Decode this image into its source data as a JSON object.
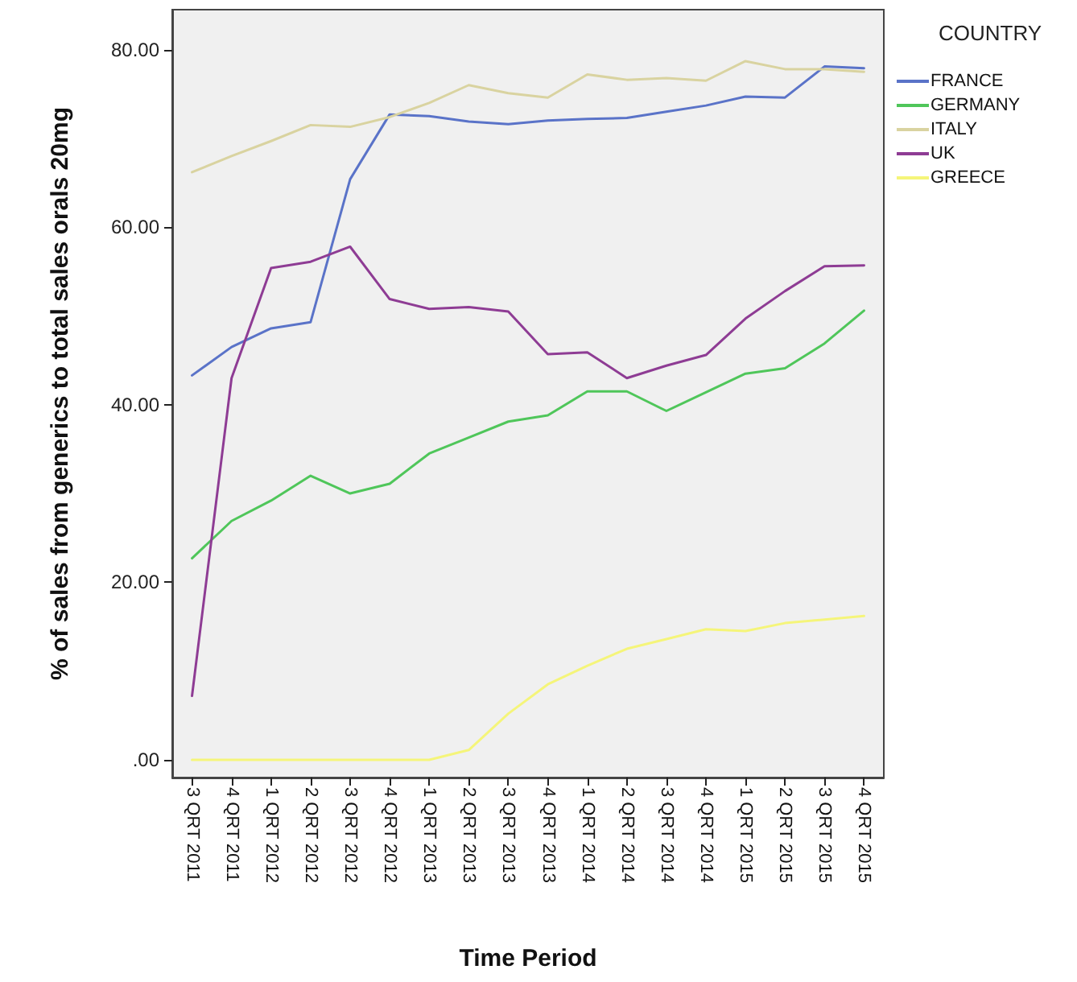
{
  "chart_data": {
    "type": "line",
    "xlabel": "Time Period",
    "ylabel": "% of sales from generics to total sales orals 20mg",
    "legend_title": "COUNTRY",
    "categories": [
      "3 QRT 2011",
      "4 QRT 2011",
      "1 QRT 2012",
      "2 QRT 2012",
      "3 QRT 2012",
      "4 QRT 2012",
      "1 QRT 2013",
      "2 QRT 2013",
      "3 QRT 2013",
      "4 QRT 2013",
      "1 QRT 2014",
      "2 QRT 2014",
      "3 QRT 2014",
      "4 QRT 2014",
      "1 QRT 2015",
      "2 QRT 2015",
      "3 QRT 2015",
      "4 QRT 2015"
    ],
    "series": [
      {
        "name": "FRANCE",
        "color": "#5a73c8",
        "values": [
          43.3,
          46.5,
          48.6,
          49.3,
          65.4,
          72.7,
          72.5,
          71.9,
          71.6,
          72.0,
          72.2,
          72.3,
          73.0,
          73.7,
          74.7,
          74.6,
          78.1,
          77.9
        ]
      },
      {
        "name": "GERMANY",
        "color": "#4fc65a",
        "values": [
          22.7,
          26.9,
          29.2,
          32.0,
          30.0,
          31.1,
          34.5,
          36.3,
          38.1,
          38.8,
          41.5,
          41.5,
          39.3,
          41.4,
          43.5,
          44.1,
          46.9,
          50.6
        ]
      },
      {
        "name": "ITALY",
        "color": "#d9d3a0",
        "values": [
          66.2,
          68.0,
          69.7,
          71.5,
          71.3,
          72.4,
          74.0,
          76.0,
          75.1,
          74.6,
          77.2,
          76.6,
          76.8,
          76.5,
          78.7,
          77.8,
          77.8,
          77.5
        ]
      },
      {
        "name": "UK",
        "color": "#8e3c94",
        "values": [
          7.2,
          43.0,
          55.4,
          56.1,
          57.8,
          51.9,
          50.8,
          51.0,
          50.5,
          45.7,
          45.9,
          43.0,
          44.4,
          45.6,
          49.7,
          52.8,
          55.6,
          55.7
        ]
      },
      {
        "name": "GREECE",
        "color": "#f5f57a",
        "values": [
          0.0,
          0.0,
          0.0,
          0.0,
          0.0,
          0.0,
          0.0,
          1.1,
          5.2,
          8.5,
          10.6,
          12.5,
          13.6,
          14.7,
          14.5,
          15.4,
          15.8,
          16.2
        ]
      }
    ],
    "ylim": [
      -2,
      84.5
    ],
    "yticks": [
      {
        "value": 0,
        "label": ".00"
      },
      {
        "value": 20,
        "label": "20.00"
      },
      {
        "value": 40,
        "label": "40.00"
      },
      {
        "value": 60,
        "label": "60.00"
      },
      {
        "value": 80,
        "label": "80.00"
      }
    ],
    "grid": false,
    "legend": "right",
    "marker": "none",
    "line_style": "solid"
  }
}
